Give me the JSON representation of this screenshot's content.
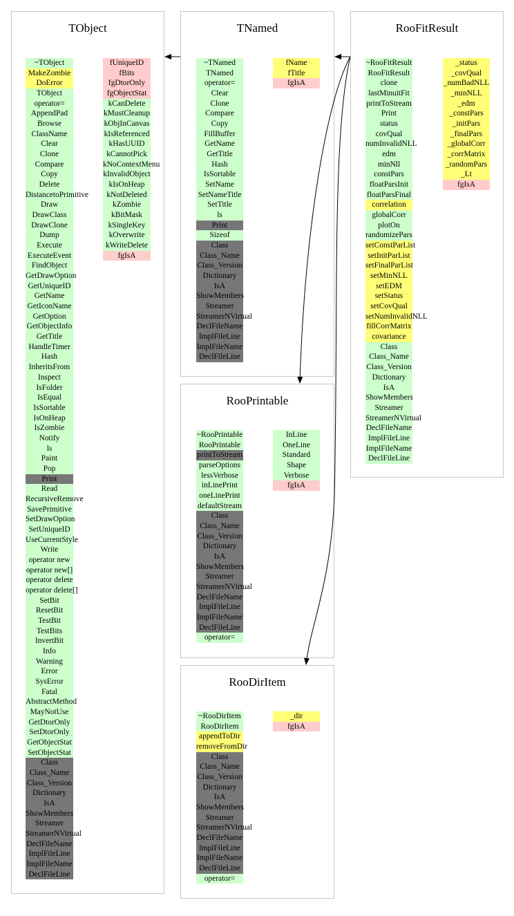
{
  "colors": {
    "public": "#ccffcc",
    "protected": "#ffff77",
    "private": "#777777",
    "private_data": "#ffcccc",
    "border": "#c8c8c8",
    "arrow": "#000000"
  },
  "classes": [
    {
      "id": "tobject",
      "title": "TObject",
      "methods": [
        {
          "t": "~TObject",
          "a": "public"
        },
        {
          "t": "MakeZombie",
          "a": "protected"
        },
        {
          "t": "DoError",
          "a": "protected"
        },
        {
          "t": "TObject",
          "a": "public"
        },
        {
          "t": "operator=",
          "a": "public"
        },
        {
          "t": "AppendPad",
          "a": "public"
        },
        {
          "t": "Browse",
          "a": "public"
        },
        {
          "t": "ClassName",
          "a": "public"
        },
        {
          "t": "Clear",
          "a": "public"
        },
        {
          "t": "Clone",
          "a": "public"
        },
        {
          "t": "Compare",
          "a": "public"
        },
        {
          "t": "Copy",
          "a": "public"
        },
        {
          "t": "Delete",
          "a": "public"
        },
        {
          "t": "DistancetoPrimitive",
          "a": "public"
        },
        {
          "t": "Draw",
          "a": "public"
        },
        {
          "t": "DrawClass",
          "a": "public"
        },
        {
          "t": "DrawClone",
          "a": "public"
        },
        {
          "t": "Dump",
          "a": "public"
        },
        {
          "t": "Execute",
          "a": "public"
        },
        {
          "t": "ExecuteEvent",
          "a": "public"
        },
        {
          "t": "FindObject",
          "a": "public"
        },
        {
          "t": "GetDrawOption",
          "a": "public"
        },
        {
          "t": "GetUniqueID",
          "a": "public"
        },
        {
          "t": "GetName",
          "a": "public"
        },
        {
          "t": "GetIconName",
          "a": "public"
        },
        {
          "t": "GetOption",
          "a": "public"
        },
        {
          "t": "GetObjectInfo",
          "a": "public"
        },
        {
          "t": "GetTitle",
          "a": "public"
        },
        {
          "t": "HandleTimer",
          "a": "public"
        },
        {
          "t": "Hash",
          "a": "public"
        },
        {
          "t": "InheritsFrom",
          "a": "public"
        },
        {
          "t": "Inspect",
          "a": "public"
        },
        {
          "t": "IsFolder",
          "a": "public"
        },
        {
          "t": "IsEqual",
          "a": "public"
        },
        {
          "t": "IsSortable",
          "a": "public"
        },
        {
          "t": "IsOnHeap",
          "a": "public"
        },
        {
          "t": "IsZombie",
          "a": "public"
        },
        {
          "t": "Notify",
          "a": "public"
        },
        {
          "t": "ls",
          "a": "public"
        },
        {
          "t": "Paint",
          "a": "public"
        },
        {
          "t": "Pop",
          "a": "public"
        },
        {
          "t": "Print",
          "a": "private"
        },
        {
          "t": "Read",
          "a": "public"
        },
        {
          "t": "RecursiveRemove",
          "a": "public"
        },
        {
          "t": "SavePrimitive",
          "a": "public"
        },
        {
          "t": "SetDrawOption",
          "a": "public"
        },
        {
          "t": "SetUniqueID",
          "a": "public"
        },
        {
          "t": "UseCurrentStyle",
          "a": "public"
        },
        {
          "t": "Write",
          "a": "public"
        },
        {
          "t": "operator new",
          "a": "public"
        },
        {
          "t": "operator new[]",
          "a": "public"
        },
        {
          "t": "operator delete",
          "a": "public"
        },
        {
          "t": "operator delete[]",
          "a": "public"
        },
        {
          "t": "SetBit",
          "a": "public"
        },
        {
          "t": "ResetBit",
          "a": "public"
        },
        {
          "t": "TestBit",
          "a": "public"
        },
        {
          "t": "TestBits",
          "a": "public"
        },
        {
          "t": "InvertBit",
          "a": "public"
        },
        {
          "t": "Info",
          "a": "public"
        },
        {
          "t": "Warning",
          "a": "public"
        },
        {
          "t": "Error",
          "a": "public"
        },
        {
          "t": "SysError",
          "a": "public"
        },
        {
          "t": "Fatal",
          "a": "public"
        },
        {
          "t": "AbstractMethod",
          "a": "public"
        },
        {
          "t": "MayNotUse",
          "a": "public"
        },
        {
          "t": "GetDtorOnly",
          "a": "public"
        },
        {
          "t": "SetDtorOnly",
          "a": "public"
        },
        {
          "t": "GetObjectStat",
          "a": "public"
        },
        {
          "t": "SetObjectStat",
          "a": "public"
        },
        {
          "t": "Class",
          "a": "private"
        },
        {
          "t": "Class_Name",
          "a": "private"
        },
        {
          "t": "Class_Version",
          "a": "private"
        },
        {
          "t": "Dictionary",
          "a": "private"
        },
        {
          "t": "IsA",
          "a": "private"
        },
        {
          "t": "ShowMembers",
          "a": "private"
        },
        {
          "t": "Streamer",
          "a": "private"
        },
        {
          "t": "StreamerNVirtual",
          "a": "private"
        },
        {
          "t": "DeclFileName",
          "a": "private"
        },
        {
          "t": "ImplFileLine",
          "a": "private"
        },
        {
          "t": "ImplFileName",
          "a": "private"
        },
        {
          "t": "DeclFileLine",
          "a": "private"
        }
      ],
      "data": [
        {
          "t": "fUniqueID",
          "a": "private"
        },
        {
          "t": "fBits",
          "a": "private"
        },
        {
          "t": "fgDtorOnly",
          "a": "private"
        },
        {
          "t": "fgObjectStat",
          "a": "private"
        },
        {
          "t": "kCanDelete",
          "a": "public"
        },
        {
          "t": "kMustCleanup",
          "a": "public"
        },
        {
          "t": "kObjInCanvas",
          "a": "public"
        },
        {
          "t": "kIsReferenced",
          "a": "public"
        },
        {
          "t": "kHasUUID",
          "a": "public"
        },
        {
          "t": "kCannotPick",
          "a": "public"
        },
        {
          "t": "kNoContextMenu",
          "a": "public"
        },
        {
          "t": "kInvalidObject",
          "a": "public"
        },
        {
          "t": "kIsOnHeap",
          "a": "public"
        },
        {
          "t": "kNotDeleted",
          "a": "public"
        },
        {
          "t": "kZombie",
          "a": "public"
        },
        {
          "t": "kBitMask",
          "a": "public"
        },
        {
          "t": "kSingleKey",
          "a": "public"
        },
        {
          "t": "kOverwrite",
          "a": "public"
        },
        {
          "t": "kWriteDelete",
          "a": "public"
        },
        {
          "t": "fgIsA",
          "a": "private"
        }
      ]
    },
    {
      "id": "tnamed",
      "title": "TNamed",
      "methods": [
        {
          "t": "~TNamed",
          "a": "public"
        },
        {
          "t": "TNamed",
          "a": "public"
        },
        {
          "t": "operator=",
          "a": "public"
        },
        {
          "t": "Clear",
          "a": "public"
        },
        {
          "t": "Clone",
          "a": "public"
        },
        {
          "t": "Compare",
          "a": "public"
        },
        {
          "t": "Copy",
          "a": "public"
        },
        {
          "t": "FillBuffer",
          "a": "public"
        },
        {
          "t": "GetName",
          "a": "public"
        },
        {
          "t": "GetTitle",
          "a": "public"
        },
        {
          "t": "Hash",
          "a": "public"
        },
        {
          "t": "IsSortable",
          "a": "public"
        },
        {
          "t": "SetName",
          "a": "public"
        },
        {
          "t": "SetNameTitle",
          "a": "public"
        },
        {
          "t": "SetTitle",
          "a": "public"
        },
        {
          "t": "ls",
          "a": "public"
        },
        {
          "t": "Print",
          "a": "private"
        },
        {
          "t": "Sizeof",
          "a": "public"
        },
        {
          "t": "Class",
          "a": "private"
        },
        {
          "t": "Class_Name",
          "a": "private"
        },
        {
          "t": "Class_Version",
          "a": "private"
        },
        {
          "t": "Dictionary",
          "a": "private"
        },
        {
          "t": "IsA",
          "a": "private"
        },
        {
          "t": "ShowMembers",
          "a": "private"
        },
        {
          "t": "Streamer",
          "a": "private"
        },
        {
          "t": "StreamerNVirtual",
          "a": "private"
        },
        {
          "t": "DeclFileName",
          "a": "private"
        },
        {
          "t": "ImplFileLine",
          "a": "private"
        },
        {
          "t": "ImplFileName",
          "a": "private"
        },
        {
          "t": "DeclFileLine",
          "a": "private"
        }
      ],
      "data": [
        {
          "t": "fName",
          "a": "protected"
        },
        {
          "t": "fTitle",
          "a": "protected"
        },
        {
          "t": "fgIsA",
          "a": "private"
        }
      ]
    },
    {
      "id": "roofitresult",
      "title": "RooFitResult",
      "methods": [
        {
          "t": "~RooFitResult",
          "a": "public"
        },
        {
          "t": "RooFitResult",
          "a": "public"
        },
        {
          "t": "clone",
          "a": "public"
        },
        {
          "t": "lastMinuitFit",
          "a": "public"
        },
        {
          "t": "printToStream",
          "a": "public"
        },
        {
          "t": "Print",
          "a": "public"
        },
        {
          "t": "status",
          "a": "public"
        },
        {
          "t": "covQual",
          "a": "public"
        },
        {
          "t": "numInvalidNLL",
          "a": "public"
        },
        {
          "t": "edm",
          "a": "public"
        },
        {
          "t": "minNll",
          "a": "public"
        },
        {
          "t": "constPars",
          "a": "public"
        },
        {
          "t": "floatParsInit",
          "a": "public"
        },
        {
          "t": "floatParsFinal",
          "a": "public"
        },
        {
          "t": "correlation",
          "a": "protected"
        },
        {
          "t": "globalCorr",
          "a": "public"
        },
        {
          "t": "plotOn",
          "a": "public"
        },
        {
          "t": "randomizePars",
          "a": "public"
        },
        {
          "t": "setConstParList",
          "a": "protected"
        },
        {
          "t": "setInitParList",
          "a": "protected"
        },
        {
          "t": "setFinalParList",
          "a": "protected"
        },
        {
          "t": "setMinNLL",
          "a": "protected"
        },
        {
          "t": "setEDM",
          "a": "protected"
        },
        {
          "t": "setStatus",
          "a": "protected"
        },
        {
          "t": "setCovQual",
          "a": "protected"
        },
        {
          "t": "setNumInvalidNLL",
          "a": "protected"
        },
        {
          "t": "fillCorrMatrix",
          "a": "protected"
        },
        {
          "t": "covariance",
          "a": "protected"
        },
        {
          "t": "Class",
          "a": "public"
        },
        {
          "t": "Class_Name",
          "a": "public"
        },
        {
          "t": "Class_Version",
          "a": "public"
        },
        {
          "t": "Dictionary",
          "a": "public"
        },
        {
          "t": "IsA",
          "a": "public"
        },
        {
          "t": "ShowMembers",
          "a": "public"
        },
        {
          "t": "Streamer",
          "a": "public"
        },
        {
          "t": "StreamerNVirtual",
          "a": "public"
        },
        {
          "t": "DeclFileName",
          "a": "public"
        },
        {
          "t": "ImplFileLine",
          "a": "public"
        },
        {
          "t": "ImplFileName",
          "a": "public"
        },
        {
          "t": "DeclFileLine",
          "a": "public"
        }
      ],
      "data": [
        {
          "t": "_status",
          "a": "protected"
        },
        {
          "t": "_covQual",
          "a": "protected"
        },
        {
          "t": "_numBadNLL",
          "a": "protected"
        },
        {
          "t": "_minNLL",
          "a": "protected"
        },
        {
          "t": "_edm",
          "a": "protected"
        },
        {
          "t": "_constPars",
          "a": "protected"
        },
        {
          "t": "_initPars",
          "a": "protected"
        },
        {
          "t": "_finalPars",
          "a": "protected"
        },
        {
          "t": "_globalCorr",
          "a": "protected"
        },
        {
          "t": "_corrMatrix",
          "a": "protected"
        },
        {
          "t": "_randomPars",
          "a": "protected"
        },
        {
          "t": "_Lt",
          "a": "protected"
        },
        {
          "t": "fgIsA",
          "a": "private"
        }
      ]
    },
    {
      "id": "rooprintable",
      "title": "RooPrintable",
      "methods": [
        {
          "t": "~RooPrintable",
          "a": "public"
        },
        {
          "t": "RooPrintable",
          "a": "public"
        },
        {
          "t": "printToStream",
          "a": "private"
        },
        {
          "t": "parseOptions",
          "a": "public"
        },
        {
          "t": "lessVerbose",
          "a": "public"
        },
        {
          "t": "inLinePrint",
          "a": "public"
        },
        {
          "t": "oneLinePrint",
          "a": "public"
        },
        {
          "t": "defaultStream",
          "a": "public"
        },
        {
          "t": "Class",
          "a": "private"
        },
        {
          "t": "Class_Name",
          "a": "private"
        },
        {
          "t": "Class_Version",
          "a": "private"
        },
        {
          "t": "Dictionary",
          "a": "private"
        },
        {
          "t": "IsA",
          "a": "private"
        },
        {
          "t": "ShowMembers",
          "a": "private"
        },
        {
          "t": "Streamer",
          "a": "private"
        },
        {
          "t": "StreamerNVirtual",
          "a": "private"
        },
        {
          "t": "DeclFileName",
          "a": "private"
        },
        {
          "t": "ImplFileLine",
          "a": "private"
        },
        {
          "t": "ImplFileName",
          "a": "private"
        },
        {
          "t": "DeclFileLine",
          "a": "private"
        },
        {
          "t": "operator=",
          "a": "public"
        }
      ],
      "data": [
        {
          "t": "InLine",
          "a": "public"
        },
        {
          "t": "OneLine",
          "a": "public"
        },
        {
          "t": "Standard",
          "a": "public"
        },
        {
          "t": "Shape",
          "a": "public"
        },
        {
          "t": "Verbose",
          "a": "public"
        },
        {
          "t": "fgIsA",
          "a": "private"
        }
      ]
    },
    {
      "id": "roodiritem",
      "title": "RooDirItem",
      "methods": [
        {
          "t": "~RooDirItem",
          "a": "public"
        },
        {
          "t": "RooDirItem",
          "a": "public"
        },
        {
          "t": "appendToDir",
          "a": "protected"
        },
        {
          "t": "removeFromDir",
          "a": "protected"
        },
        {
          "t": "Class",
          "a": "private"
        },
        {
          "t": "Class_Name",
          "a": "private"
        },
        {
          "t": "Class_Version",
          "a": "private"
        },
        {
          "t": "Dictionary",
          "a": "private"
        },
        {
          "t": "IsA",
          "a": "private"
        },
        {
          "t": "ShowMembers",
          "a": "private"
        },
        {
          "t": "Streamer",
          "a": "private"
        },
        {
          "t": "StreamerNVirtual",
          "a": "private"
        },
        {
          "t": "DeclFileName",
          "a": "private"
        },
        {
          "t": "ImplFileLine",
          "a": "private"
        },
        {
          "t": "ImplFileName",
          "a": "private"
        },
        {
          "t": "DeclFileLine",
          "a": "private"
        },
        {
          "t": "operator=",
          "a": "public"
        }
      ],
      "data": [
        {
          "t": "_dir",
          "a": "protected"
        },
        {
          "t": "fgIsA",
          "a": "private"
        }
      ]
    }
  ],
  "edges": [
    {
      "from": "roofitresult",
      "to": "tnamed"
    },
    {
      "from": "tnamed",
      "to": "tobject"
    },
    {
      "from": "roofitresult",
      "to": "rooprintable"
    },
    {
      "from": "roofitresult",
      "to": "roodiritem"
    }
  ]
}
